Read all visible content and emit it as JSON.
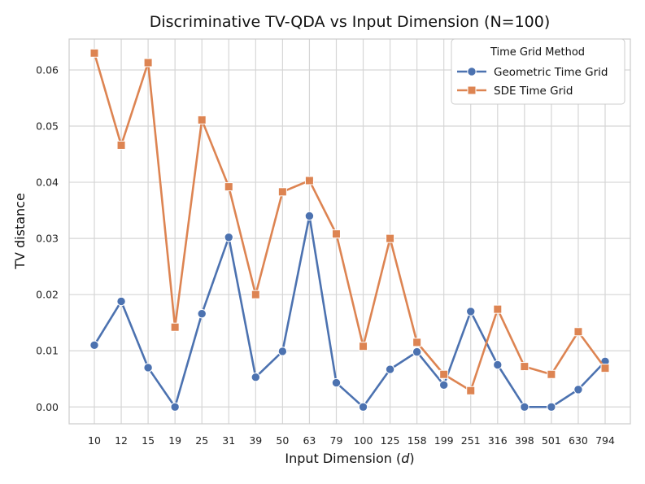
{
  "chart_data": {
    "type": "line",
    "title": "Discriminative TV-QDA vs Input Dimension (N=100)",
    "xlabel_prefix": "Input Dimension (",
    "xlabel_var": "d",
    "xlabel_suffix": ")",
    "ylabel": "TV distance",
    "categories": [
      "10",
      "12",
      "15",
      "19",
      "25",
      "31",
      "39",
      "50",
      "63",
      "79",
      "100",
      "125",
      "158",
      "199",
      "251",
      "316",
      "398",
      "501",
      "630",
      "794"
    ],
    "ylim": [
      -0.003,
      0.0655
    ],
    "yticks": [
      0.0,
      0.01,
      0.02,
      0.03,
      0.04,
      0.05,
      0.06
    ],
    "ytick_labels": [
      "0.00",
      "0.01",
      "0.02",
      "0.03",
      "0.04",
      "0.05",
      "0.06"
    ],
    "grid": true,
    "legend": {
      "title": "Time Grid Method",
      "position": "top-right"
    },
    "series": [
      {
        "name": "Geometric Time Grid",
        "color": "#4c72b0",
        "marker": "circle",
        "values": [
          0.011,
          0.0188,
          0.007,
          0.0,
          0.0166,
          0.0302,
          0.0053,
          0.0099,
          0.034,
          0.0043,
          0.0,
          0.0067,
          0.0098,
          0.0039,
          0.017,
          0.0075,
          0.0,
          0.0,
          0.0031,
          0.0081
        ]
      },
      {
        "name": "SDE Time Grid",
        "color": "#dd8452",
        "marker": "square",
        "values": [
          0.063,
          0.0466,
          0.0613,
          0.0142,
          0.0511,
          0.0392,
          0.02,
          0.0383,
          0.0403,
          0.0308,
          0.0108,
          0.03,
          0.0115,
          0.0058,
          0.0029,
          0.0174,
          0.0072,
          0.0058,
          0.0134,
          0.0069
        ]
      }
    ]
  }
}
